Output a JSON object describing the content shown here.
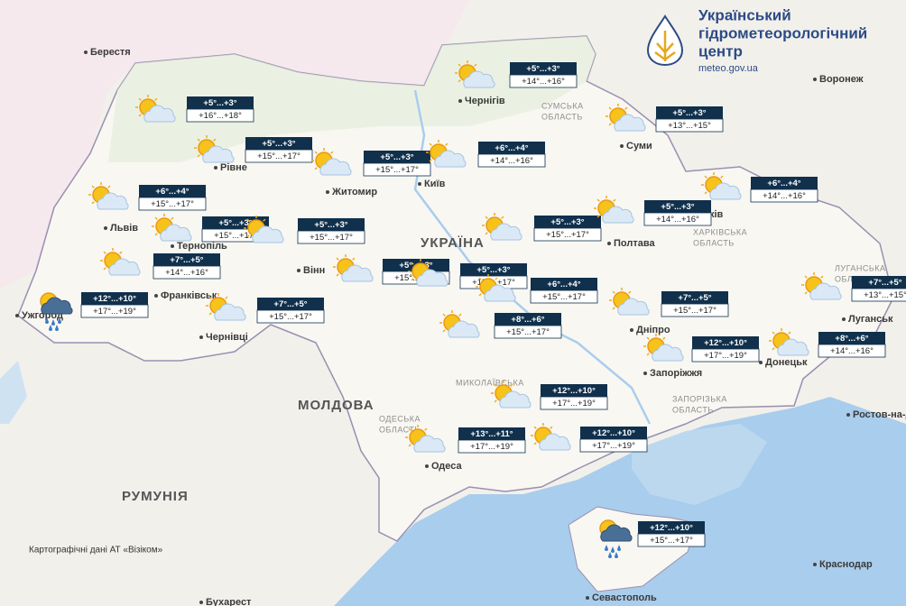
{
  "header": {
    "title_lines": [
      "Український",
      "гідрометеорологічний",
      "центр"
    ],
    "url": "meteo.gov.ua"
  },
  "forecasts": [
    {
      "night": "+5°...+3°",
      "day": "+16°...+18°",
      "icon": "partly-cloudy"
    },
    {
      "night": "+5°...+3°",
      "day": "+15°...+17°",
      "icon": "partly-cloudy"
    },
    {
      "night": "+5°...+3°",
      "day": "+15°...+17°",
      "icon": "partly-cloudy"
    },
    {
      "night": "+6°...+4°",
      "day": "+14°...+16°",
      "icon": "partly-cloudy"
    },
    {
      "night": "+5°...+3°",
      "day": "+14°...+16°",
      "icon": "partly-cloudy"
    },
    {
      "night": "+5°...+3°",
      "day": "+13°...+15°",
      "icon": "partly-cloudy"
    },
    {
      "night": "+6°...+4°",
      "day": "+15°...+17°",
      "icon": "partly-cloudy"
    },
    {
      "night": "+5°...+3°",
      "day": "+15°...+17°",
      "icon": "partly-cloudy"
    },
    {
      "night": "+5°...+3°",
      "day": "+15°...+17°",
      "icon": "partly-cloudy"
    },
    {
      "night": "+7°...+5°",
      "day": "+14°...+16°",
      "icon": "partly-cloudy"
    },
    {
      "night": "+12°...+10°",
      "day": "+17°...+19°",
      "icon": "rain"
    },
    {
      "night": "+7°...+5°",
      "day": "+15°...+17°",
      "icon": "partly-cloudy"
    },
    {
      "night": "+5°...+3°",
      "day": "+15°...+17°",
      "icon": "partly-cloudy"
    },
    {
      "night": "+5°...+3°",
      "day": "+15°...+17°",
      "icon": "partly-cloudy"
    },
    {
      "night": "+5°...+3°",
      "day": "+15°...+17°",
      "icon": "partly-cloudy"
    },
    {
      "night": "+6°...+4°",
      "day": "+15°...+17°",
      "icon": "partly-cloudy"
    },
    {
      "night": "+5°...+3°",
      "day": "+14°...+16°",
      "icon": "partly-cloudy"
    },
    {
      "night": "+6°...+4°",
      "day": "+14°...+16°",
      "icon": "partly-cloudy"
    },
    {
      "night": "+7°...+5°",
      "day": "+15°...+17°",
      "icon": "partly-cloudy"
    },
    {
      "night": "+7°...+5°",
      "day": "+13°...+15°",
      "icon": "partly-cloudy"
    },
    {
      "night": "+8°...+6°",
      "day": "+15°...+17°",
      "icon": "partly-cloudy"
    },
    {
      "night": "+12°...+10°",
      "day": "+17°...+19°",
      "icon": "partly-cloudy"
    },
    {
      "night": "+8°...+6°",
      "day": "+14°...+16°",
      "icon": "partly-cloudy"
    },
    {
      "night": "+12°...+10°",
      "day": "+17°...+19°",
      "icon": "partly-cloudy"
    },
    {
      "night": "+13°...+11°",
      "day": "+17°...+19°",
      "icon": "partly-cloudy"
    },
    {
      "night": "+12°...+10°",
      "day": "+17°...+19°",
      "icon": "partly-cloudy"
    },
    {
      "night": "+12°...+10°",
      "day": "+15°...+17°",
      "icon": "rain"
    }
  ],
  "cities": [
    "Берестя",
    "Чернігів",
    "Суми",
    "Воронеж",
    "Рівне",
    "Житомир",
    "Київ",
    "Львів",
    "Тернопіль",
    "Франківськ",
    "Ужгород",
    "Чернівці",
    "Вінн",
    "Полтава",
    "ків",
    "Дніпро",
    "Запоріжжя",
    "Донецьк",
    "Луганськ",
    "Одеса",
    "Севастополь",
    "Ростов-на-Дону",
    "Краснодар",
    "Бухарест"
  ],
  "regions": [
    [
      "СУМСЬКА",
      "ОБЛАСТЬ"
    ],
    [
      "ХАРКІВСЬКА",
      "ОБЛАСТЬ"
    ],
    [
      "ЛУГАНСЬКА",
      "ОБЛАСТЬ"
    ],
    [
      "ЗАПОРІЗЬКА",
      "ОБЛАСТЬ"
    ],
    [
      "МИКОЛАЇВСЬКА"
    ],
    [
      "ОДЕСЬКА",
      "ОБЛАСТЬ"
    ]
  ],
  "countries": [
    "УКРАЇНА",
    "МОЛДОВА",
    "РУМУНІЯ"
  ],
  "attribution": "Картографічні дані АТ «Візіком»"
}
